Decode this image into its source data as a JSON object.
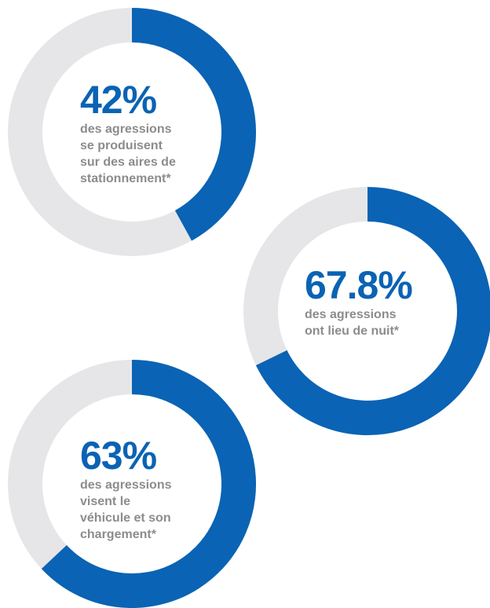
{
  "colors": {
    "accent": "#0a63b4",
    "track": "#e6e6e8",
    "text_muted": "#8c8c8c"
  },
  "chart_data": [
    {
      "type": "donut",
      "value": 42,
      "max": 100,
      "value_label": "42%",
      "description": "des agressions\nse produisent\nsur des aires de\nstationnement*"
    },
    {
      "type": "donut",
      "value": 67.8,
      "max": 100,
      "value_label": "67.8%",
      "description": "des agressions\nont lieu de nuit*"
    },
    {
      "type": "donut",
      "value": 63,
      "max": 100,
      "value_label": "63%",
      "description": "des agressions\nvisent le\nvéhicule et son\nchargement*"
    }
  ]
}
